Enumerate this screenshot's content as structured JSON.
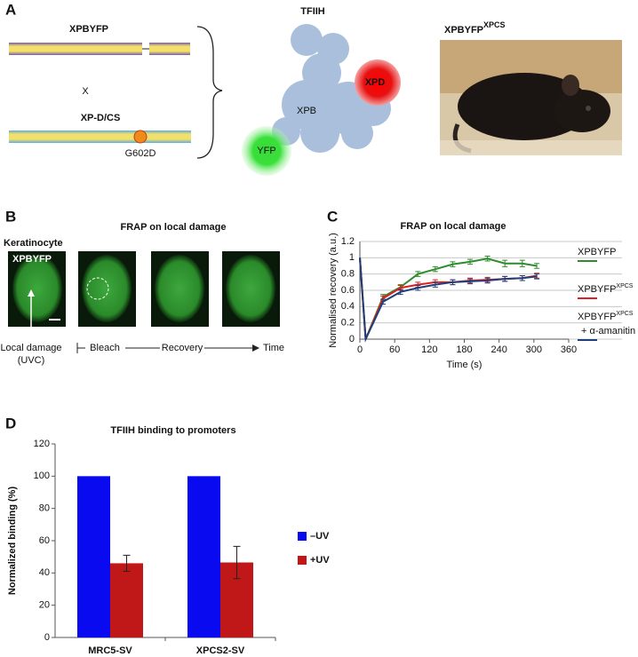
{
  "panel_a": {
    "label": "A",
    "gene_top": "XPBYFP",
    "cross": "X",
    "gene_bottom": "XP-D/CS",
    "mutation": "G602D",
    "complex": "TFIIH",
    "xpd": "XPD",
    "xpb": "XPB",
    "yfp": "YFP",
    "mouse": "XPBYFP",
    "mouse_sup": "XPCS"
  },
  "panel_b": {
    "label": "B",
    "title": "FRAP on local damage",
    "cell_type": "Keratinocyte",
    "image_label": "XPBYFP",
    "damage_line1": "Local damage",
    "damage_line2": "(UVC)",
    "bleach": "Bleach",
    "recovery": "Recovery",
    "time": "Time"
  },
  "chart_data": [
    {
      "panel": "C",
      "type": "line",
      "title": "FRAP on local damage",
      "x_label": "Time (s)",
      "y_label": "Normalised recovery (a.u.)",
      "x": [
        0,
        10,
        40,
        70,
        100,
        130,
        160,
        190,
        220,
        250,
        280,
        305
      ],
      "series": [
        {
          "name": "XPBYFP",
          "color": "#2e8b2e",
          "values": [
            1,
            0,
            0.52,
            0.64,
            0.8,
            0.86,
            0.92,
            0.95,
            0.99,
            0.93,
            0.93,
            0.9
          ],
          "errors": [
            null,
            null,
            0.03,
            0.03,
            0.03,
            0.03,
            0.03,
            0.03,
            0.03,
            0.04,
            0.04,
            0.03
          ]
        },
        {
          "name": "XPBYFP",
          "name_sup": "XPCS",
          "color": "#e02020",
          "values": [
            1,
            0,
            0.5,
            0.63,
            0.67,
            0.7,
            0.7,
            0.72,
            0.73,
            0.74,
            0.75,
            0.78
          ],
          "errors": [
            null,
            null,
            0.03,
            0.03,
            0.03,
            0.03,
            0.03,
            0.03,
            0.03,
            0.03,
            0.03,
            0.03
          ]
        },
        {
          "name": "XPBYFP",
          "name_sup": "XPCS",
          "name_extra": "+ α-amanitin",
          "color": "#1f3f7a",
          "values": [
            1,
            0,
            0.46,
            0.58,
            0.63,
            0.67,
            0.7,
            0.71,
            0.72,
            0.74,
            0.75,
            0.77
          ],
          "errors": [
            null,
            null,
            0.03,
            0.03,
            0.03,
            0.03,
            0.03,
            0.03,
            0.03,
            0.03,
            0.03,
            0.03
          ]
        }
      ],
      "xlim": [
        0,
        360
      ],
      "xticks": [
        0,
        60,
        120,
        180,
        240,
        300,
        360
      ],
      "ylim": [
        0,
        1.2
      ],
      "yticks": [
        0,
        0.2,
        0.4,
        0.6,
        0.8,
        1,
        1.2
      ],
      "grid": true,
      "legend": "right"
    },
    {
      "panel": "D",
      "type": "bar",
      "title": "TFIIH binding to promoters",
      "y_label": "Normalized binding (%)",
      "categories": [
        "MRC5-SV",
        "XPCS2-SV"
      ],
      "series": [
        {
          "name": "–UV",
          "color": "#0a0af0",
          "values": [
            100,
            100
          ]
        },
        {
          "name": "+UV",
          "color": "#c01818",
          "values": [
            46,
            46.5
          ],
          "errors": [
            5,
            10
          ]
        }
      ],
      "ylim": [
        0,
        120
      ],
      "yticks": [
        0,
        20,
        40,
        60,
        80,
        100,
        120
      ],
      "grid": false,
      "legend": "right"
    }
  ]
}
